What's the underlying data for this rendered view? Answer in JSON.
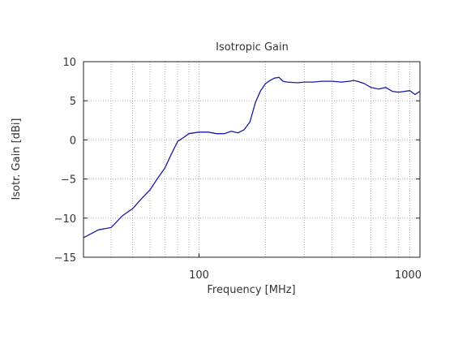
{
  "chart_data": {
    "type": "line",
    "title": "Isotropic Gain",
    "xlabel": "Frequency [MHz]",
    "ylabel": "Isotr. Gain [dBi]",
    "x_scale": "log",
    "xlim": [
      30,
      1000
    ],
    "ylim": [
      -15,
      10
    ],
    "grid": true,
    "x_ticks": [
      100,
      1000
    ],
    "x_tick_labels": [
      "100",
      "1000"
    ],
    "y_ticks": [
      10,
      5,
      0,
      -5,
      -10,
      -15
    ],
    "y_tick_labels": [
      "10",
      "5",
      "0",
      "−5",
      "−10",
      "−15"
    ],
    "series": [
      {
        "color": "#1a1aa0",
        "x": [
          30,
          35,
          40,
          45,
          50,
          55,
          60,
          65,
          70,
          75,
          80,
          85,
          90,
          95,
          100,
          110,
          120,
          130,
          140,
          150,
          160,
          170,
          180,
          190,
          200,
          210,
          220,
          230,
          240,
          250,
          280,
          300,
          330,
          360,
          400,
          440,
          480,
          500,
          520,
          560,
          600,
          650,
          700,
          750,
          800,
          850,
          900,
          950,
          1000
        ],
        "y": [
          -12.5,
          -11.5,
          -11.2,
          -9.7,
          -8.8,
          -7.5,
          -6.4,
          -4.9,
          -3.6,
          -1.8,
          -0.2,
          0.3,
          0.8,
          0.9,
          1.0,
          1.0,
          0.8,
          0.8,
          1.1,
          0.9,
          1.3,
          2.3,
          4.8,
          6.3,
          7.2,
          7.6,
          7.9,
          8.0,
          7.5,
          7.4,
          7.3,
          7.4,
          7.4,
          7.5,
          7.5,
          7.4,
          7.5,
          7.6,
          7.5,
          7.2,
          6.7,
          6.5,
          6.7,
          6.2,
          6.1,
          6.2,
          6.3,
          5.8,
          6.2
        ]
      }
    ]
  }
}
